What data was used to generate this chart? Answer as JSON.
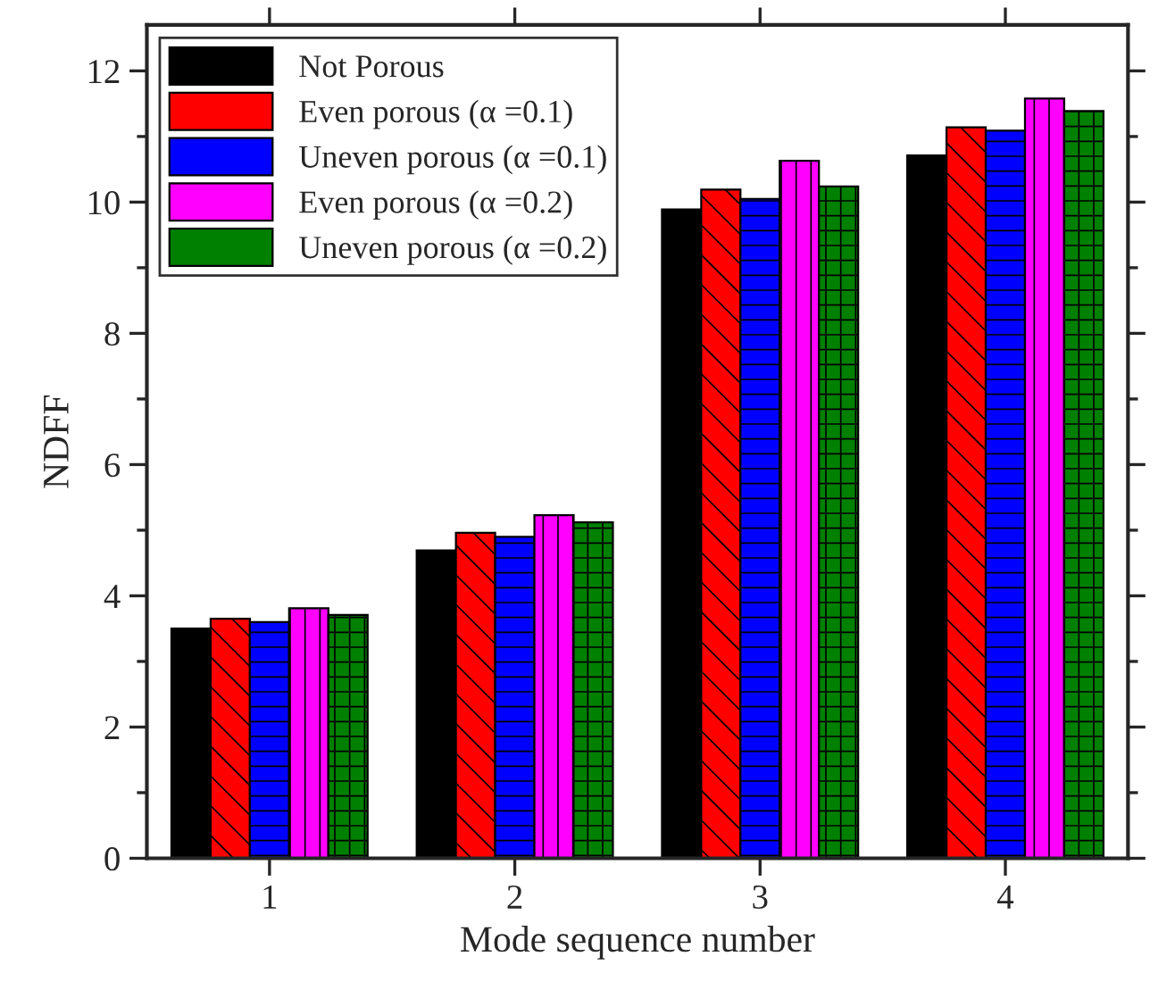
{
  "chart_data": {
    "type": "bar",
    "xlabel": "Mode sequence number",
    "ylabel": "NDFF",
    "categories": [
      "1",
      "2",
      "3",
      "4"
    ],
    "series": [
      {
        "name": "Not Porous",
        "color": "#000000",
        "values": [
          3.5,
          4.69,
          9.89,
          10.71
        ]
      },
      {
        "name": "Even porous (α =0.1)",
        "color": "#ff0000",
        "values": [
          3.65,
          4.96,
          10.19,
          11.14
        ]
      },
      {
        "name": "Uneven porous (α =0.1)",
        "color": "#0000ff",
        "values": [
          3.6,
          4.9,
          10.05,
          11.09
        ]
      },
      {
        "name": "Even porous (α =0.2)",
        "color": "#ff00ff",
        "values": [
          3.81,
          5.23,
          10.63,
          11.58
        ]
      },
      {
        "name": "Uneven porous (α =0.2)",
        "color": "#008000",
        "values": [
          3.71,
          5.12,
          10.24,
          11.39
        ]
      }
    ],
    "ylim": [
      0,
      12.7
    ],
    "yticks": [
      0,
      2,
      4,
      6,
      8,
      10,
      12
    ],
    "legend": "top left",
    "grid": false
  }
}
